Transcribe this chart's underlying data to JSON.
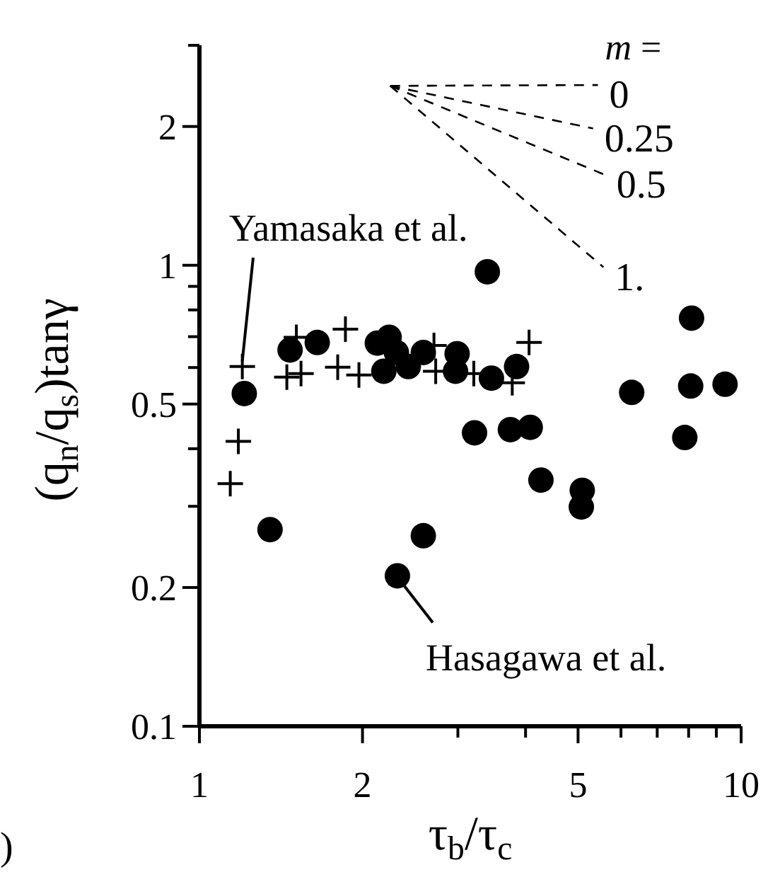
{
  "chart_data": {
    "type": "scatter",
    "xlabel": "τ$_{b}$/τ$_{c}$",
    "ylabel": "(q$_{n}$/q$_{s}$)tanγ",
    "log": "xy",
    "grid": false,
    "legend_title": "m =",
    "xlim": [
      1,
      10
    ],
    "ylim": [
      0.1,
      3
    ],
    "xticks": [
      1,
      2,
      {
        "value": 3,
        "label": null
      },
      {
        "value": 4,
        "label": null
      },
      5,
      {
        "value": 6,
        "label": null
      },
      {
        "value": 7,
        "label": null
      },
      {
        "value": 8,
        "label": null
      },
      {
        "value": 9,
        "label": null
      },
      10
    ],
    "yticks": [
      0.1,
      0.2,
      {
        "value": 0.3,
        "label": null
      },
      {
        "value": 0.4,
        "label": null
      },
      0.5,
      {
        "value": 0.6,
        "label": null
      },
      {
        "value": 0.7,
        "label": null
      },
      {
        "value": 0.8,
        "label": null
      },
      {
        "value": 0.9,
        "label": null
      },
      1,
      2,
      {
        "value": 3,
        "label": null
      }
    ],
    "series": [
      {
        "marker": "circle",
        "color": "#000000",
        "x": [
          1.21,
          1.35,
          1.47,
          1.65,
          2.13,
          2.24,
          2.31,
          2.19,
          2.43,
          2.59,
          2.99,
          2.97,
          3.4,
          3.46,
          3.85,
          3.22,
          3.75,
          4.08,
          4.27,
          5.09,
          5.07,
          2.59,
          6.28,
          8.1,
          8.07,
          9.34,
          7.87,
          2.32
        ],
        "values": [
          0.527,
          0.267,
          0.655,
          0.68,
          0.678,
          0.698,
          0.647,
          0.589,
          0.603,
          0.647,
          0.643,
          0.589,
          0.968,
          0.569,
          0.603,
          0.433,
          0.44,
          0.445,
          0.342,
          0.325,
          0.299,
          0.259,
          0.53,
          0.768,
          0.547,
          0.552,
          0.423,
          0.212
        ]
      },
      {
        "marker": "cross",
        "color": "#000000",
        "x": [
          1.2,
          1.18,
          1.14,
          1.45,
          1.51,
          1.54,
          1.86,
          1.8,
          1.97,
          2.71,
          2.73,
          3.21,
          4.06,
          3.78
        ],
        "values": [
          0.603,
          0.415,
          0.336,
          0.572,
          0.698,
          0.582,
          0.727,
          0.601,
          0.578,
          0.67,
          0.589,
          0.582,
          0.68,
          0.556
        ]
      },
      {
        "type": "line",
        "name": "0",
        "line_style": "dashed",
        "marker": "none",
        "color": "#000000",
        "x": [
          2.25,
          5.44
        ],
        "values": [
          2.45,
          2.46
        ]
      },
      {
        "type": "line",
        "name": "0.25",
        "line_style": "dashed",
        "marker": "none",
        "color": "#000000",
        "x": [
          2.25,
          5.33
        ],
        "values": [
          2.45,
          1.98
        ]
      },
      {
        "type": "line",
        "name": "0.5",
        "line_style": "dashed",
        "marker": "none",
        "color": "#000000",
        "x": [
          2.25,
          5.61
        ],
        "values": [
          2.45,
          1.57
        ]
      },
      {
        "type": "line",
        "name": "1.",
        "line_style": "dashed",
        "marker": "none",
        "color": "#000000",
        "x": [
          2.25,
          5.57
        ],
        "values": [
          2.45,
          0.99
        ]
      }
    ],
    "annotations": [
      {
        "text": "Yamasaka et al.",
        "x": 1.2,
        "y": 0.603
      },
      {
        "text": "Hasagawa et al.",
        "x": 2.32,
        "y": 0.212
      },
      ")"
    ]
  }
}
